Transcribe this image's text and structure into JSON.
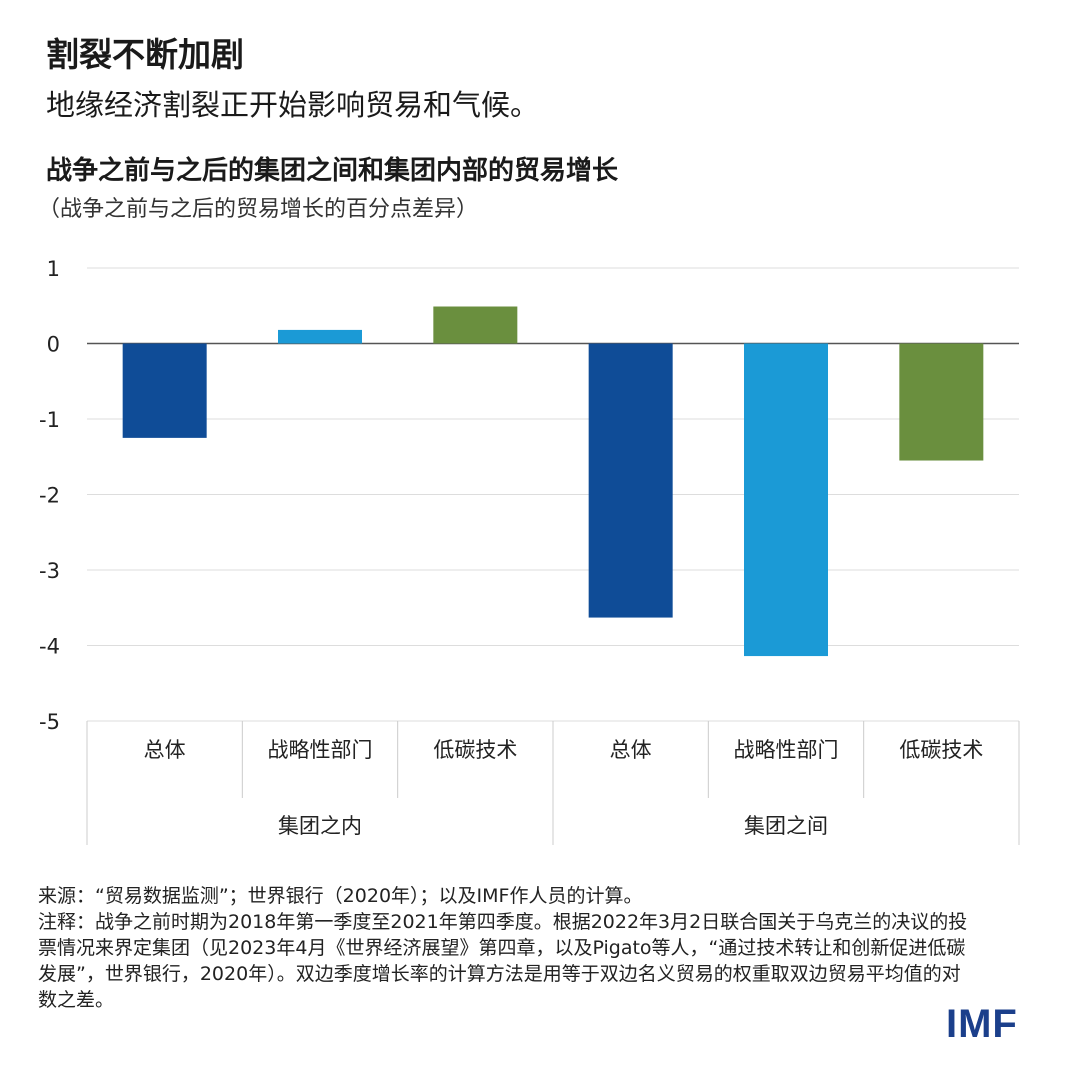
{
  "header": {
    "title": "割裂不断加剧",
    "subtitle": "地缘经济割裂正开始影响贸易和气候。"
  },
  "colors": {
    "overall": "#0f4c97",
    "strategic": "#1b9ad6",
    "lowcarbon": "#6a8f3e",
    "grid": "#dddddd",
    "axis": "#555555",
    "logo": "#1b3f8b"
  },
  "chart_data": {
    "type": "bar",
    "title": "战争之前与之后的集团之间和集团内部的贸易增长",
    "subtitle": "（战争之前与之后的贸易增长的百分点差异）",
    "ylim": [
      -5,
      1
    ],
    "yticks": [
      1,
      0,
      -1,
      -2,
      -3,
      -4,
      -5
    ],
    "ytick_labels": [
      "1",
      "0",
      "-1",
      "-2",
      "-3",
      "-4",
      "-5"
    ],
    "groups": [
      {
        "label": "集团之内",
        "bars": [
          {
            "label": "总体",
            "value": -1.25,
            "color_key": "overall"
          },
          {
            "label": "战略性部门",
            "value": 0.18,
            "color_key": "strategic"
          },
          {
            "label": "低碳技术",
            "value": 0.49,
            "color_key": "lowcarbon"
          }
        ]
      },
      {
        "label": "集团之间",
        "bars": [
          {
            "label": "总体",
            "value": -3.63,
            "color_key": "overall"
          },
          {
            "label": "战略性部门",
            "value": -4.14,
            "color_key": "strategic"
          },
          {
            "label": "低碳技术",
            "value": -1.55,
            "color_key": "lowcarbon"
          }
        ]
      }
    ]
  },
  "notes": {
    "source": "来源：“贸易数据监测”；世界银行（2020年）；以及IMF作人员的计算。",
    "note": "注释：战争之前时期为2018年第一季度至2021年第四季度。根据2022年3月2日联合国关于乌克兰的决议的投票情况来界定集团（见2023年4月《世界经济展望》第四章，以及Pigato等人，“通过技术转让和创新促进低碳发展”，世界银行，2020年）。双边季度增长率的计算方法是用等于双边名义贸易的权重取双边贸易平均值的对数之差。"
  },
  "logo": {
    "text": "IMF"
  }
}
